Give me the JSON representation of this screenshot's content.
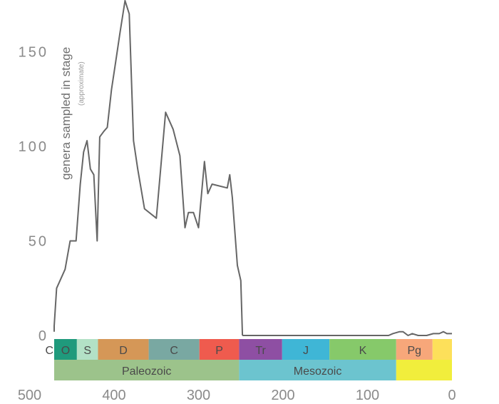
{
  "chart_data": {
    "type": "line",
    "ylabel": "genera sampled in stage",
    "ylabel_note": "(approximate)",
    "xlim": [
      520,
      0
    ],
    "ylim": [
      0,
      180
    ],
    "yticks": [
      "0",
      "50",
      "100",
      "150"
    ],
    "xticks": [
      "500",
      "400",
      "300",
      "200",
      "100",
      "0"
    ],
    "line_color": "#666666",
    "series": [
      {
        "points": [
          [
            485,
            2
          ],
          [
            478,
            3
          ],
          [
            472,
            5
          ],
          [
            468,
            25
          ],
          [
            465,
            28
          ],
          [
            458,
            35
          ],
          [
            452,
            50
          ],
          [
            445,
            50
          ],
          [
            440,
            80
          ],
          [
            436,
            97
          ],
          [
            432,
            103
          ],
          [
            428,
            88
          ],
          [
            424,
            85
          ],
          [
            420,
            50
          ],
          [
            417,
            105
          ],
          [
            412,
            108
          ],
          [
            408,
            110
          ],
          [
            403,
            130
          ],
          [
            398,
            145
          ],
          [
            393,
            160
          ],
          [
            387,
            177
          ],
          [
            382,
            170
          ],
          [
            377,
            103
          ],
          [
            372,
            88
          ],
          [
            364,
            67
          ],
          [
            350,
            62
          ],
          [
            339,
            118
          ],
          [
            330,
            109
          ],
          [
            322,
            95
          ],
          [
            316,
            57
          ],
          [
            312,
            65
          ],
          [
            306,
            65
          ],
          [
            300,
            57
          ],
          [
            293,
            92
          ],
          [
            289,
            75
          ],
          [
            284,
            80
          ],
          [
            266,
            78
          ],
          [
            263,
            85
          ],
          [
            260,
            73
          ],
          [
            254,
            37
          ],
          [
            250,
            29
          ],
          [
            248,
            0
          ]
        ]
      },
      {
        "points": [
          [
            248,
            0
          ],
          [
            220,
            0
          ],
          [
            185,
            0
          ],
          [
            150,
            0
          ],
          [
            100,
            0
          ],
          [
            75,
            0
          ],
          [
            70,
            1
          ],
          [
            62,
            2
          ],
          [
            58,
            2
          ],
          [
            52,
            0
          ],
          [
            47,
            1
          ],
          [
            40,
            0
          ],
          [
            30,
            0
          ],
          [
            22,
            1
          ],
          [
            15,
            1
          ],
          [
            10,
            2
          ],
          [
            6,
            1
          ],
          [
            2,
            1
          ],
          [
            0,
            1
          ]
        ]
      }
    ],
    "periods": [
      {
        "label": "Cm",
        "start": 541,
        "end": 485,
        "color": "#7a9f62"
      },
      {
        "label": "O",
        "start": 485,
        "end": 444,
        "color": "#1f9a7c"
      },
      {
        "label": "S",
        "start": 444,
        "end": 419,
        "color": "#b3e1c6"
      },
      {
        "label": "D",
        "start": 419,
        "end": 359,
        "color": "#d59757"
      },
      {
        "label": "C",
        "start": 359,
        "end": 299,
        "color": "#79a8a2"
      },
      {
        "label": "P",
        "start": 299,
        "end": 252,
        "color": "#ef5b4e"
      },
      {
        "label": "Tr",
        "start": 252,
        "end": 201,
        "color": "#8e4fa3"
      },
      {
        "label": "J",
        "start": 201,
        "end": 145,
        "color": "#3fb6d6"
      },
      {
        "label": "K",
        "start": 145,
        "end": 66,
        "color": "#86c96a"
      },
      {
        "label": "Pg",
        "start": 66,
        "end": 23,
        "color": "#f7a77a"
      },
      {
        "label": "",
        "start": 23,
        "end": 0,
        "color": "#fde05a"
      }
    ],
    "eras": [
      {
        "label": "Paleozoic",
        "start": 541,
        "end": 252,
        "color": "#9cc38b"
      },
      {
        "label": "Mesozoic",
        "start": 252,
        "end": 66,
        "color": "#6cc4cf"
      },
      {
        "label": "",
        "start": 66,
        "end": 0,
        "color": "#f1ee3c"
      }
    ]
  }
}
